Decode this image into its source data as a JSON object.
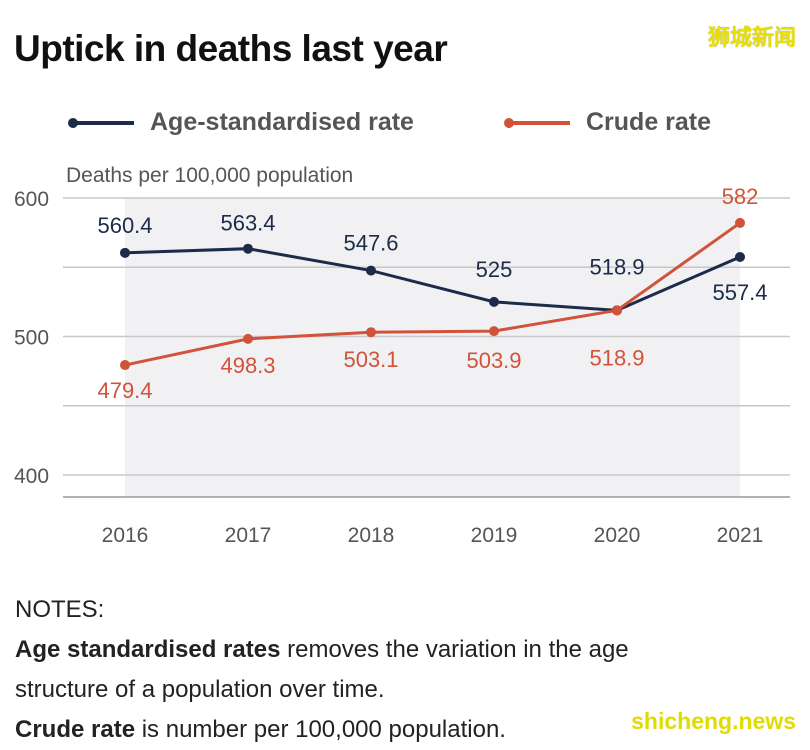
{
  "title": "Uptick in deaths last year",
  "watermark_top": "狮城新闻",
  "watermark_bottom": "shicheng.news",
  "chart_data": {
    "type": "line",
    "title": "Uptick in deaths last year",
    "ylabel": "Deaths per 100,000 population",
    "x": [
      "2016",
      "2017",
      "2018",
      "2019",
      "2020",
      "2021"
    ],
    "ylim": [
      400,
      600
    ],
    "yticks": [
      "400",
      "500",
      "600"
    ],
    "grid": true,
    "legend": "top",
    "series": [
      {
        "name": "Age-standardised rate",
        "color": "#1c2b4a",
        "values": [
          560.4,
          563.4,
          547.6,
          525,
          518.9,
          557.4
        ],
        "labels": [
          "560.4",
          "563.4",
          "547.6",
          "525",
          "518.9",
          "557.4"
        ]
      },
      {
        "name": "Crude rate",
        "color": "#d0533a",
        "values": [
          479.4,
          498.3,
          503.1,
          503.9,
          518.9,
          582
        ],
        "labels": [
          "479.4",
          "498.3",
          "503.1",
          "503.9",
          "518.9",
          "582"
        ]
      }
    ]
  },
  "notes": {
    "heading": "NOTES:",
    "line1_bold": "Age standardised rates",
    "line1_rest": " removes the variation in the age",
    "line2": "structure of a population over time.",
    "line3_bold": "Crude rate",
    "line3_rest": " is number per 100,000 population."
  }
}
